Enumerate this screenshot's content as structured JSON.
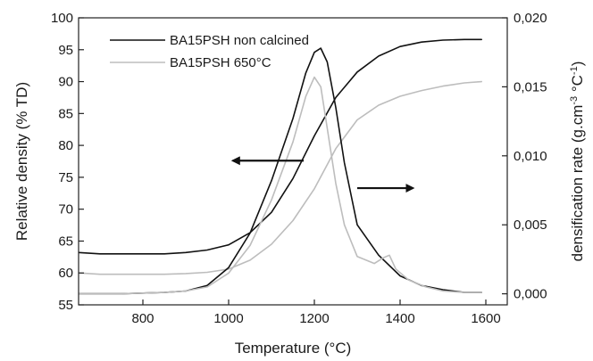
{
  "chart_data": {
    "type": "line",
    "xlabel": "Temperature (°C)",
    "ylabel_left": "Relative density (% TD)",
    "ylabel_right_prefix": "densification rate (g.cm",
    "ylabel_right_sup1": "-3",
    "ylabel_right_mid": " °C",
    "ylabel_right_sup2": "-1",
    "ylabel_right_suffix": ")",
    "xlim": [
      650,
      1650
    ],
    "ylim_left": [
      55,
      100
    ],
    "ylim_right": [
      -0.0008,
      0.02
    ],
    "x_ticks": [
      800,
      1000,
      1200,
      1400,
      1600
    ],
    "y_left_ticks": [
      55,
      60,
      65,
      70,
      75,
      80,
      85,
      90,
      95,
      100
    ],
    "y_right_ticks": [
      0.0,
      0.005,
      0.01,
      0.015,
      0.02
    ],
    "x_tick_labels": [
      "800",
      "1000",
      "1200",
      "1400",
      "1600"
    ],
    "y_left_tick_labels": [
      "55",
      "60",
      "65",
      "70",
      "75",
      "80",
      "85",
      "90",
      "95",
      "100"
    ],
    "y_right_tick_labels": [
      "0,000",
      "0,005",
      "0,010",
      "0,015",
      "0,020"
    ],
    "legend": {
      "placement": "top-left",
      "entries": [
        {
          "label": "BA15PSH non calcined",
          "color": "#111111"
        },
        {
          "label": "BA15PSH 650°C",
          "color": "#bdbdbd"
        }
      ]
    },
    "series": [
      {
        "name": "BA15PSH non calcined",
        "kind": "relative-density",
        "axis": "left",
        "color": "#111111",
        "x": [
          650,
          700,
          750,
          800,
          850,
          900,
          950,
          1000,
          1050,
          1100,
          1150,
          1200,
          1250,
          1300,
          1350,
          1400,
          1450,
          1500,
          1550,
          1590
        ],
        "y": [
          63.2,
          63.0,
          63.0,
          63.0,
          63.0,
          63.2,
          63.6,
          64.4,
          66.3,
          69.5,
          74.8,
          81.5,
          87.5,
          91.5,
          94.0,
          95.5,
          96.2,
          96.5,
          96.6,
          96.6
        ]
      },
      {
        "name": "BA15PSH 650°C",
        "kind": "relative-density",
        "axis": "left",
        "color": "#bdbdbd",
        "x": [
          650,
          700,
          750,
          800,
          850,
          900,
          950,
          1000,
          1050,
          1100,
          1150,
          1200,
          1250,
          1300,
          1350,
          1400,
          1450,
          1500,
          1550,
          1590
        ],
        "y": [
          60.0,
          59.8,
          59.8,
          59.8,
          59.8,
          59.9,
          60.1,
          60.6,
          62.0,
          64.5,
          68.2,
          73.2,
          79.5,
          84.0,
          86.3,
          87.7,
          88.6,
          89.3,
          89.8,
          90.0
        ]
      },
      {
        "name": "BA15PSH non calcined",
        "kind": "densification-rate",
        "axis": "right",
        "color": "#111111",
        "x": [
          650,
          750,
          850,
          900,
          950,
          1000,
          1050,
          1100,
          1150,
          1180,
          1200,
          1215,
          1230,
          1250,
          1270,
          1300,
          1350,
          1400,
          1450,
          1500,
          1550,
          1590
        ],
        "y": [
          0.0,
          0.0,
          0.0001,
          0.0002,
          0.0006,
          0.0019,
          0.0044,
          0.0082,
          0.0127,
          0.016,
          0.0175,
          0.0178,
          0.0168,
          0.0135,
          0.0095,
          0.005,
          0.0028,
          0.0013,
          0.0006,
          0.0003,
          0.0001,
          0.0001
        ]
      },
      {
        "name": "BA15PSH 650°C",
        "kind": "densification-rate",
        "axis": "right",
        "color": "#bdbdbd",
        "x": [
          650,
          750,
          850,
          900,
          950,
          1000,
          1050,
          1100,
          1150,
          1180,
          1200,
          1215,
          1230,
          1250,
          1270,
          1300,
          1340,
          1360,
          1375,
          1390,
          1420,
          1460,
          1500,
          1550,
          1590
        ],
        "y": [
          0.0,
          0.0,
          0.0001,
          0.0002,
          0.0005,
          0.0015,
          0.0035,
          0.0068,
          0.011,
          0.0143,
          0.0157,
          0.015,
          0.012,
          0.008,
          0.005,
          0.0027,
          0.0022,
          0.0026,
          0.0028,
          0.0018,
          0.001,
          0.0005,
          0.0002,
          0.0001,
          0.0001
        ]
      }
    ],
    "arrows": [
      {
        "from": [
          1175,
          77.6
        ],
        "to": [
          1010,
          77.6
        ],
        "direction": "left"
      },
      {
        "from": [
          1300,
          73.3
        ],
        "to": [
          1430,
          73.3
        ],
        "direction": "right"
      }
    ]
  }
}
